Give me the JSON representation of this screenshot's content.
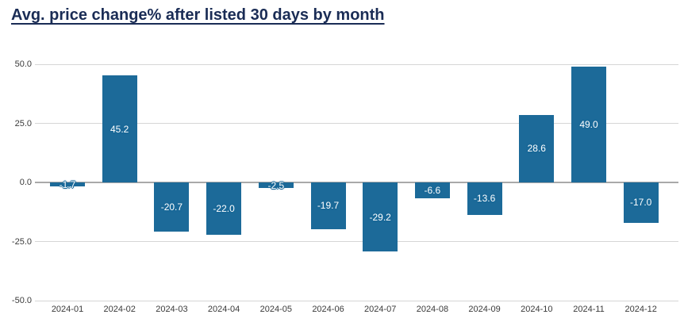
{
  "title": "Avg. price change% after listed 30 days by month",
  "colors": {
    "bar": "#1c6a99",
    "bar_label_text": "#ffffff",
    "title_text": "#1a2c55",
    "gridline": "#d6d6d6",
    "zero_line": "#a9a9a9",
    "axis_text": "#3a3a3a",
    "background": "#ffffff"
  },
  "chart_data": {
    "type": "bar",
    "title": "Avg. price change% after listed 30 days by month",
    "categories": [
      "2024-01",
      "2024-02",
      "2024-03",
      "2024-04",
      "2024-05",
      "2024-06",
      "2024-07",
      "2024-08",
      "2024-09",
      "2024-10",
      "2024-11",
      "2024-12"
    ],
    "values": [
      -1.7,
      45.2,
      -20.7,
      -22.0,
      -2.5,
      -19.7,
      -29.2,
      -6.6,
      -13.6,
      28.6,
      49.0,
      -17.0
    ],
    "value_labels": [
      "-1.7",
      "45.2",
      "-20.7",
      "-22.0",
      "-2.5",
      "-19.7",
      "-29.2",
      "-6.6",
      "-13.6",
      "28.6",
      "49.0",
      "-17.0"
    ],
    "xlabel": "",
    "ylabel": "",
    "ylim": [
      -50,
      50
    ],
    "y_ticks": [
      50.0,
      25.0,
      0.0,
      -25.0,
      -50.0
    ],
    "y_tick_labels": [
      "50.0",
      "25.0",
      "0.0",
      "-25.0",
      "-50.0"
    ],
    "grid": true,
    "legend": false,
    "bar_label_position": "inside-center"
  }
}
